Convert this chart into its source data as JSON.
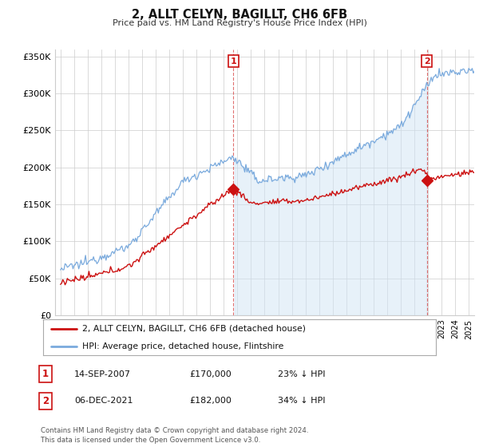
{
  "title": "2, ALLT CELYN, BAGILLT, CH6 6FB",
  "subtitle": "Price paid vs. HM Land Registry's House Price Index (HPI)",
  "ylabel_ticks": [
    "£0",
    "£50K",
    "£100K",
    "£150K",
    "£200K",
    "£250K",
    "£300K",
    "£350K"
  ],
  "ytick_values": [
    0,
    50000,
    100000,
    150000,
    200000,
    250000,
    300000,
    350000
  ],
  "ylim": [
    0,
    360000
  ],
  "xlim_start": 1994.6,
  "xlim_end": 2025.4,
  "hpi_color": "#7aaadd",
  "hpi_fill_color": "#d0e4f5",
  "price_color": "#cc1111",
  "marker1_date": 2007.71,
  "marker1_price": 170000,
  "marker2_date": 2021.92,
  "marker2_price": 182000,
  "legend_line1": "2, ALLT CELYN, BAGILLT, CH6 6FB (detached house)",
  "legend_line2": "HPI: Average price, detached house, Flintshire",
  "table_row1_date": "14-SEP-2007",
  "table_row1_price": "£170,000",
  "table_row1_hpi": "23% ↓ HPI",
  "table_row2_date": "06-DEC-2021",
  "table_row2_price": "£182,000",
  "table_row2_hpi": "34% ↓ HPI",
  "footnote": "Contains HM Land Registry data © Crown copyright and database right 2024.\nThis data is licensed under the Open Government Licence v3.0.",
  "background_color": "#ffffff",
  "grid_color": "#cccccc"
}
